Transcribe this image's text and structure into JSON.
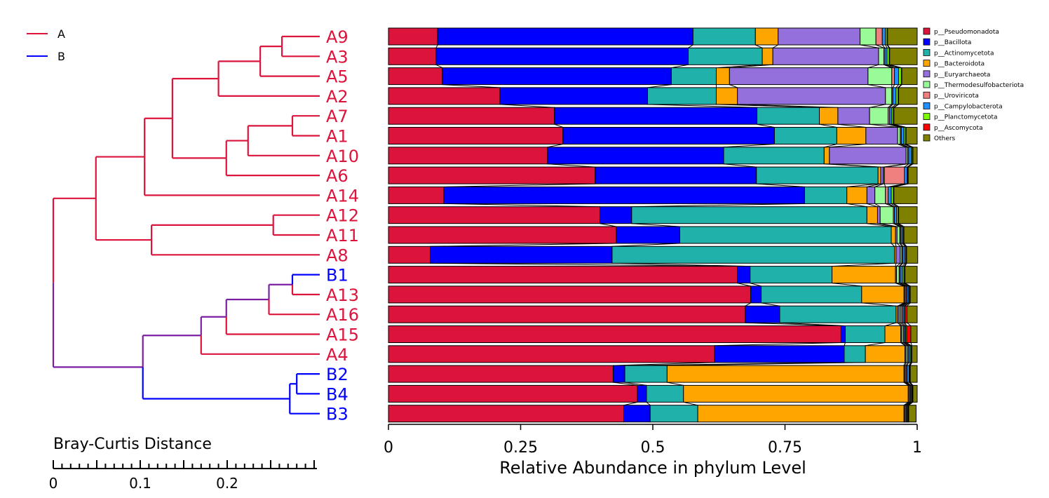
{
  "chart_data": {
    "type": "bar",
    "orientation": "horizontal",
    "stacked": true,
    "xlabel": "Relative Abundance in phylum Level",
    "xlim": [
      0,
      1
    ],
    "xticks": [
      "0",
      "0.25",
      "0.5",
      "0.75",
      "1"
    ],
    "xtick_values": [
      0,
      0.25,
      0.5,
      0.75,
      1
    ],
    "categories": [
      "A9",
      "A3",
      "A5",
      "A2",
      "A7",
      "A1",
      "A10",
      "A6",
      "A14",
      "A12",
      "A11",
      "A8",
      "B1",
      "A13",
      "A16",
      "A15",
      "A4",
      "B2",
      "B4",
      "B3"
    ],
    "group_of": [
      "A",
      "A",
      "A",
      "A",
      "A",
      "A",
      "A",
      "A",
      "A",
      "A",
      "A",
      "A",
      "B",
      "A",
      "A",
      "A",
      "A",
      "B",
      "B",
      "B"
    ],
    "series": [
      {
        "name": "p__Pseudomonadota",
        "color": "#DC143C",
        "values": [
          0.093,
          0.09,
          0.102,
          0.211,
          0.314,
          0.33,
          0.301,
          0.391,
          0.105,
          0.4,
          0.431,
          0.079,
          0.66,
          0.685,
          0.675,
          0.856,
          0.617,
          0.425,
          0.471,
          0.445
        ]
      },
      {
        "name": "p__Bacillota",
        "color": "#0000FF",
        "values": [
          0.483,
          0.477,
          0.433,
          0.279,
          0.383,
          0.4,
          0.333,
          0.305,
          0.682,
          0.06,
          0.12,
          0.344,
          0.024,
          0.02,
          0.065,
          0.008,
          0.245,
          0.022,
          0.017,
          0.05
        ]
      },
      {
        "name": "p__Actinomycetota",
        "color": "#20B2AA",
        "values": [
          0.118,
          0.14,
          0.085,
          0.13,
          0.118,
          0.118,
          0.19,
          0.23,
          0.08,
          0.445,
          0.4,
          0.534,
          0.155,
          0.19,
          0.22,
          0.075,
          0.04,
          0.08,
          0.07,
          0.09
        ]
      },
      {
        "name": "p__Bacteroidota",
        "color": "#FFA500",
        "values": [
          0.043,
          0.02,
          0.025,
          0.04,
          0.035,
          0.055,
          0.01,
          0.005,
          0.038,
          0.02,
          0.008,
          0.003,
          0.12,
          0.08,
          0.003,
          0.03,
          0.075,
          0.448,
          0.425,
          0.39
        ]
      },
      {
        "name": "p__Euryarchaeota",
        "color": "#9370DB",
        "values": [
          0.155,
          0.2,
          0.262,
          0.28,
          0.06,
          0.06,
          0.145,
          0.005,
          0.015,
          0.005,
          0.003,
          0.008,
          0.002,
          0.002,
          0.003,
          0.002,
          0.002,
          0.002,
          0.002,
          0.002
        ]
      },
      {
        "name": "p__Thermodesulfobacteriota",
        "color": "#98FB98",
        "values": [
          0.03,
          0.01,
          0.045,
          0.012,
          0.035,
          0.005,
          0.003,
          0.002,
          0.02,
          0.025,
          0.005,
          0.003,
          0.005,
          0.002,
          0.003,
          0.003,
          0.003,
          0.002,
          0.002,
          0.002
        ]
      },
      {
        "name": "p__Uroviricota",
        "color": "#F08080",
        "values": [
          0.012,
          0.002,
          0.005,
          0.002,
          0.003,
          0.002,
          0.002,
          0.038,
          0.005,
          0.002,
          0.002,
          0.002,
          0.002,
          0.002,
          0.003,
          0.002,
          0.002,
          0.002,
          0.001,
          0.001
        ]
      },
      {
        "name": "p__Campylobacterota",
        "color": "#1E90FF",
        "values": [
          0.006,
          0.004,
          0.008,
          0.006,
          0.004,
          0.005,
          0.005,
          0.005,
          0.006,
          0.004,
          0.003,
          0.004,
          0.004,
          0.003,
          0.003,
          0.002,
          0.003,
          0.004,
          0.002,
          0.002
        ]
      },
      {
        "name": "p__Planctomycetota",
        "color": "#7CFC00",
        "values": [
          0.003,
          0.004,
          0.005,
          0.004,
          0.003,
          0.003,
          0.002,
          0.001,
          0.004,
          0.003,
          0.002,
          0.002,
          0.003,
          0.001,
          0.002,
          0.002,
          0.002,
          0.001,
          0.001,
          0.001
        ]
      },
      {
        "name": "p__Ascomycota",
        "color": "#FF0000",
        "values": [
          0.001,
          0.001,
          0.001,
          0.001,
          0.001,
          0.001,
          0.001,
          0.001,
          0.001,
          0.001,
          0.001,
          0.001,
          0.002,
          0.002,
          0.004,
          0.008,
          0.001,
          0.001,
          0.001,
          0.001
        ]
      },
      {
        "name": "Others",
        "color": "#808000",
        "values": [
          0.056,
          0.052,
          0.029,
          0.035,
          0.044,
          0.021,
          0.008,
          0.017,
          0.044,
          0.035,
          0.025,
          0.021,
          0.023,
          0.013,
          0.019,
          0.012,
          0.01,
          0.013,
          0.008,
          0.014
        ]
      }
    ],
    "legend_position": "right",
    "dendrogram": {
      "scale_label": "Bray-Curtis Distance",
      "scale_ticks": [
        "0",
        "0.1",
        "0.2"
      ],
      "scale_tick_values": [
        0,
        0.1,
        0.2
      ],
      "legend": [
        {
          "name": "A",
          "color": "#DC143C"
        },
        {
          "name": "B",
          "color": "#0000FF"
        }
      ],
      "merge_color": "#7B1FA2"
    }
  }
}
